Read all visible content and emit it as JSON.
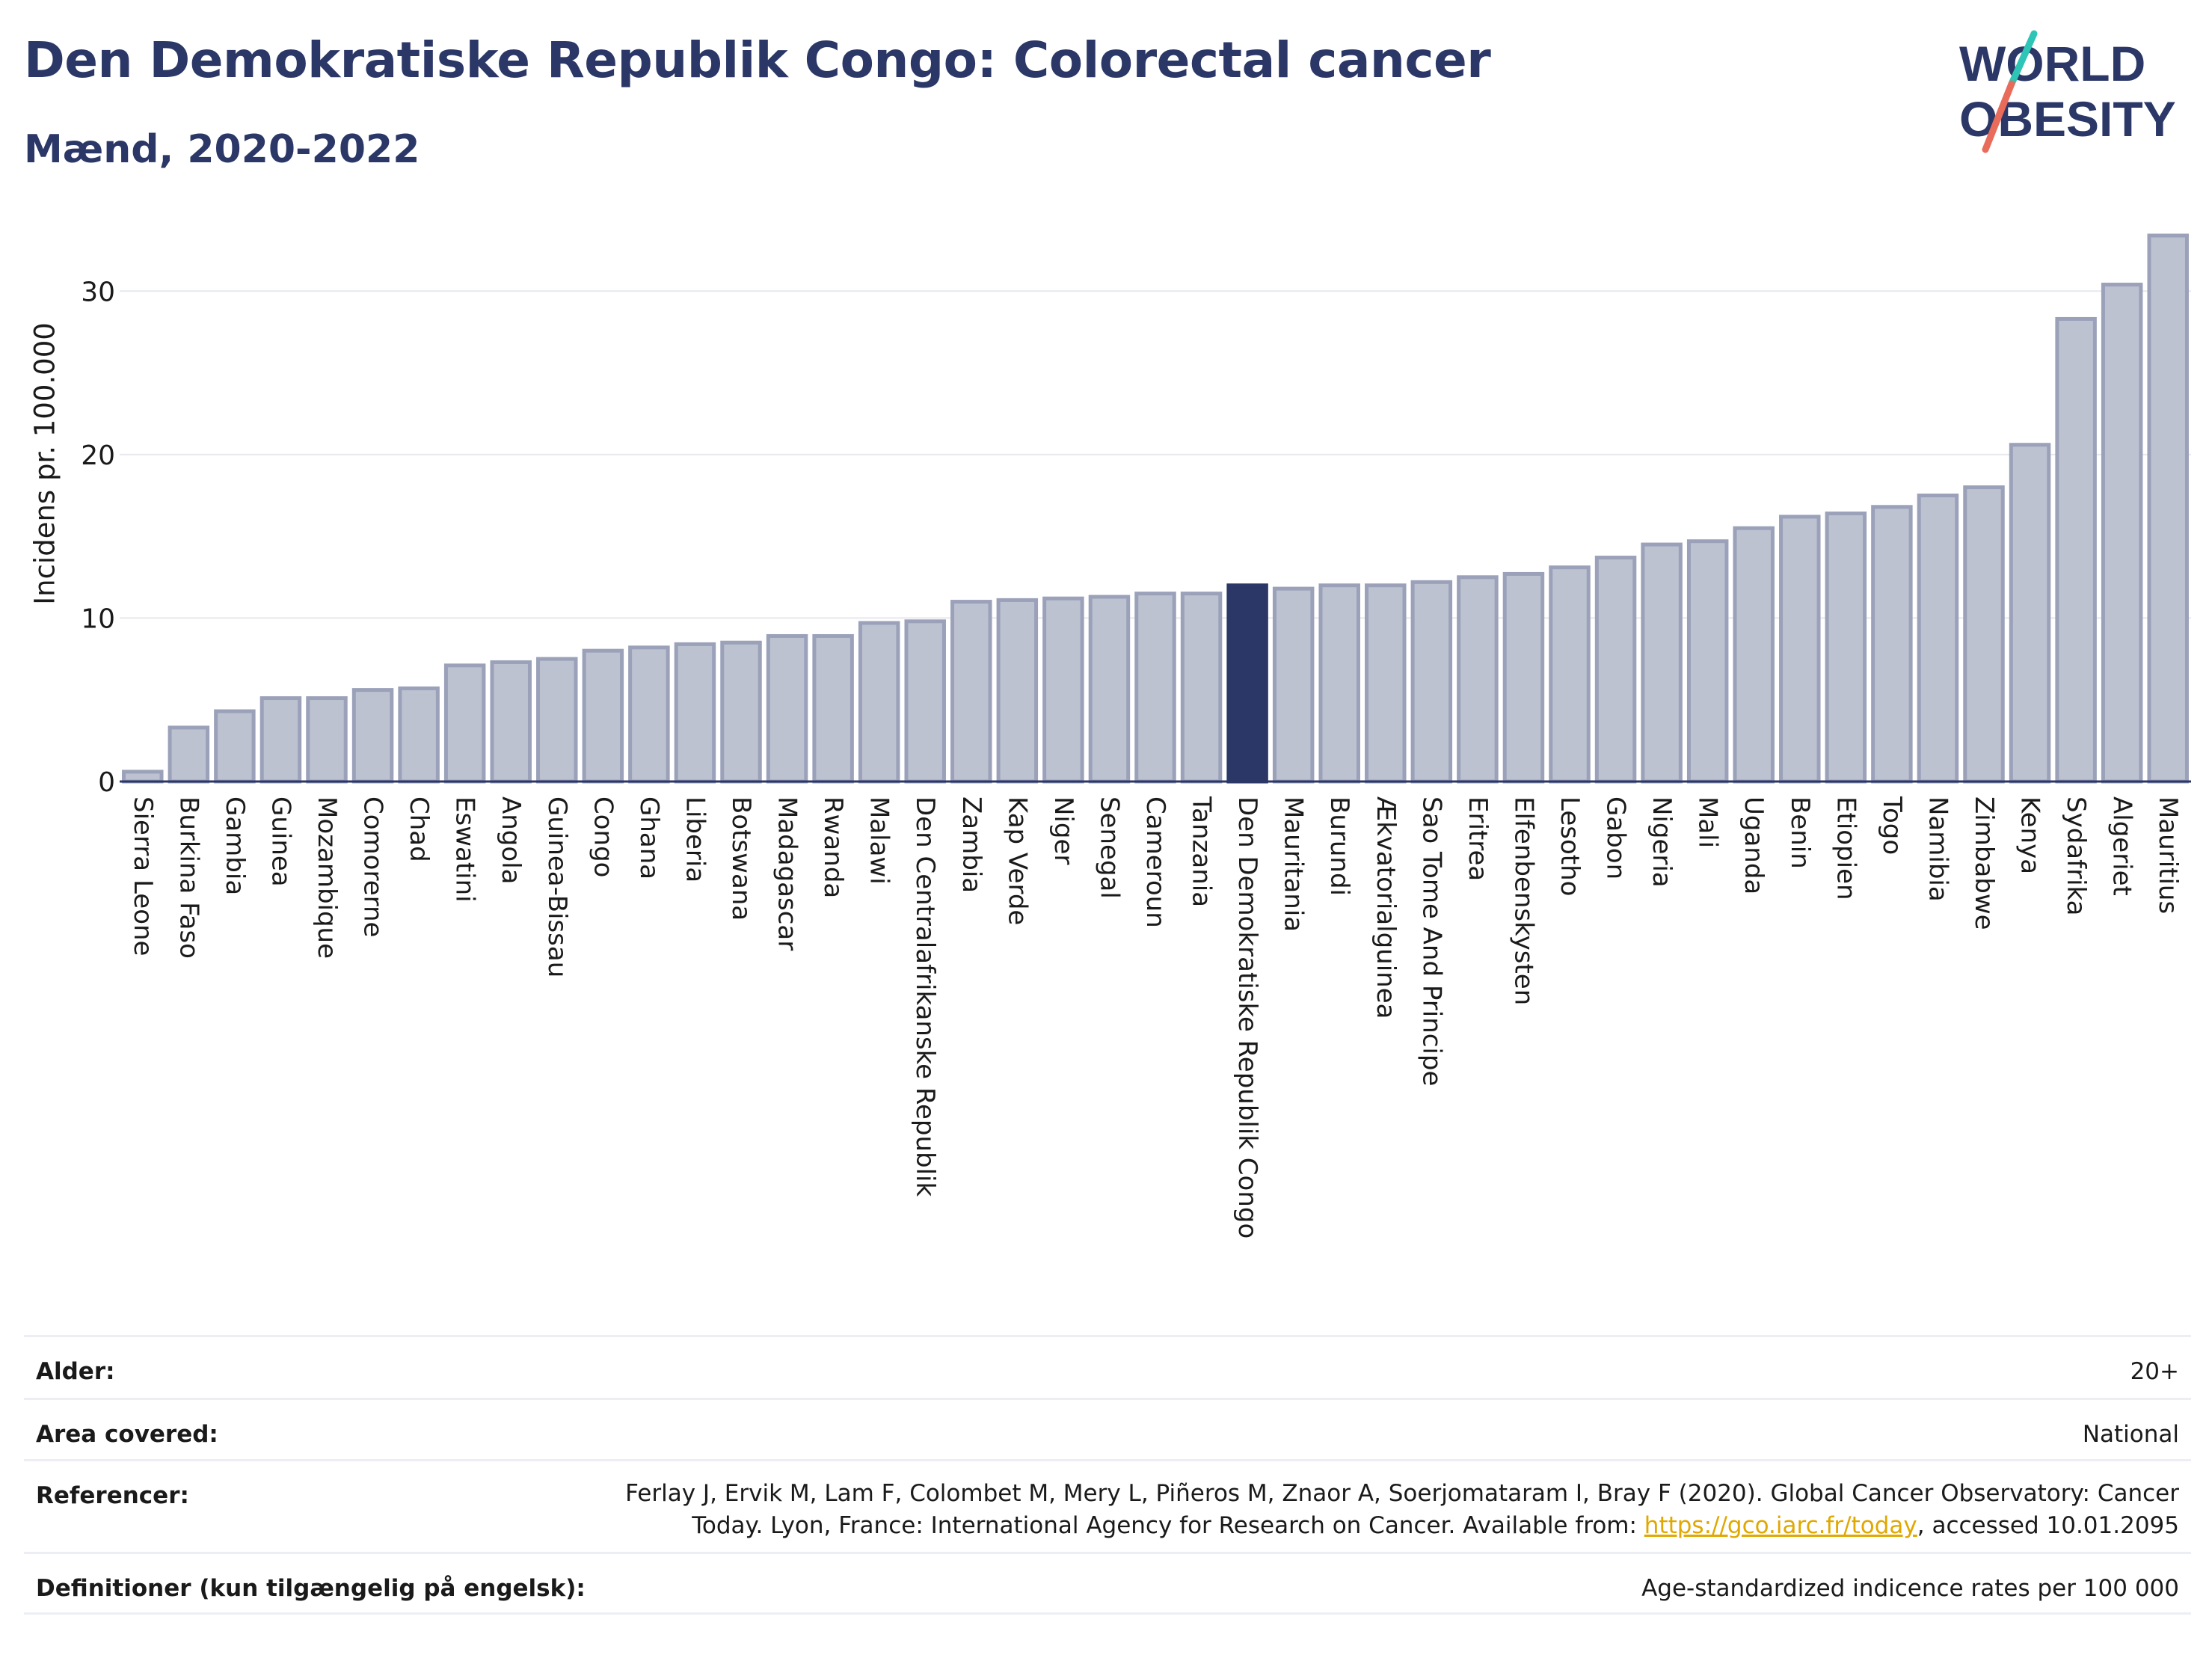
{
  "header": {
    "title": "Den Demokratiske Republik Congo: Colorectal cancer",
    "subtitle": "Mænd, 2020-2022"
  },
  "logo": {
    "line1": "WORLD",
    "line2": "OBESITY",
    "accent_teal": "#2ec4b6",
    "accent_red": "#e96b5a"
  },
  "chart_data": {
    "type": "bar",
    "ylabel": "Incidens pr. 100.000",
    "xlabel": "",
    "ylim": [
      0,
      35
    ],
    "yticks": [
      0,
      10,
      20,
      30
    ],
    "grid": true,
    "highlight": "Den Demokratiske Republik Congo",
    "colors": {
      "bar": "#bdc2d1",
      "bar_edge": "#9aa1b9",
      "highlight": "#2b3766"
    },
    "categories": [
      "Sierra Leone",
      "Burkina Faso",
      "Gambia",
      "Guinea",
      "Mozambique",
      "Comorerne",
      "Chad",
      "Eswatini",
      "Angola",
      "Guinea-Bissau",
      "Congo",
      "Ghana",
      "Liberia",
      "Botswana",
      "Madagascar",
      "Rwanda",
      "Malawi",
      "Den Centralafrikanske Republik",
      "Zambia",
      "Kap Verde",
      "Niger",
      "Senegal",
      "Cameroun",
      "Tanzania",
      "Den Demokratiske Republik Congo",
      "Mauritania",
      "Burundi",
      "Ækvatorialguinea",
      "Sao Tome And Principe",
      "Eritrea",
      "Elfenbenskysten",
      "Lesotho",
      "Gabon",
      "Nigeria",
      "Mali",
      "Uganda",
      "Benin",
      "Etiopien",
      "Togo",
      "Namibia",
      "Zimbabwe",
      "Kenya",
      "Sydafrika",
      "Algeriet",
      "Mauritius"
    ],
    "values": [
      0.6,
      3.3,
      4.3,
      5.1,
      5.1,
      5.6,
      5.7,
      7.1,
      7.3,
      7.5,
      8.0,
      8.2,
      8.4,
      8.5,
      8.9,
      8.9,
      9.7,
      9.8,
      11.0,
      11.1,
      11.2,
      11.3,
      11.5,
      11.5,
      12.0,
      11.8,
      12.0,
      12.0,
      12.2,
      12.5,
      12.7,
      13.1,
      13.7,
      14.5,
      14.7,
      15.5,
      16.2,
      16.4,
      16.8,
      17.5,
      18.0,
      20.6,
      28.3,
      30.4,
      33.4
    ]
  },
  "info": {
    "age_label": "Alder:",
    "age_value": "20+",
    "area_label": "Area covered:",
    "area_value": "National",
    "ref_label": "Referencer:",
    "ref_text_1": "Ferlay J, Ervik M, Lam F, Colombet M, Mery L, Piñeros M, Znaor A, Soerjomataram I, Bray F (2020). Global Cancer Observatory: Cancer Today. Lyon, France: International Agency for Research on Cancer. Available from: ",
    "ref_link": "https://gco.iarc.fr/today",
    "ref_text_2": ", accessed 10.01.2095",
    "def_label": "Definitioner (kun tilgængelig på engelsk):",
    "def_value": "Age-standardized indicence rates per 100 000"
  }
}
